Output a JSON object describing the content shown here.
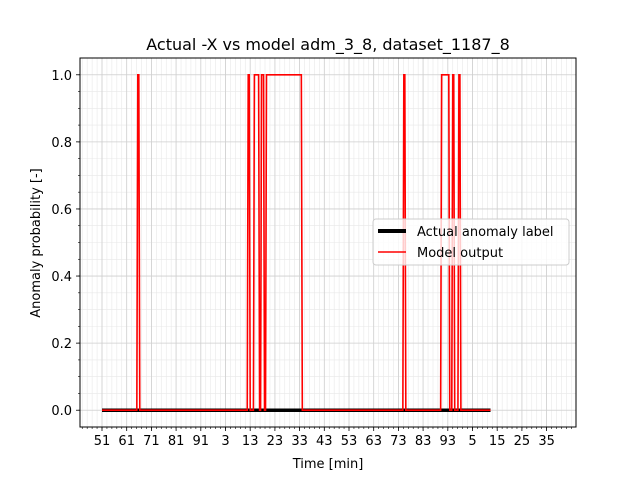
{
  "chart_data": {
    "type": "line",
    "title": "Actual -X vs model adm_3_8, dataset_1187_8",
    "xlabel": "Time [min]",
    "ylabel": "Anomaly probability [-]",
    "x_ticks": [
      "51",
      "61",
      "71",
      "81",
      "91",
      "3",
      "13",
      "23",
      "33",
      "43",
      "53",
      "63",
      "73",
      "83",
      "93",
      "5",
      "15",
      "25",
      "35"
    ],
    "y_ticks": [
      "0.0",
      "0.2",
      "0.4",
      "0.6",
      "0.8",
      "1.0"
    ],
    "ylim": [
      -0.05,
      1.05
    ],
    "grid": true,
    "legend_position": "center-right",
    "series": [
      {
        "name": "Actual anomaly label",
        "color": "#000000",
        "x": [
          0,
          157.3
        ],
        "y": [
          0,
          0
        ]
      },
      {
        "name": "Model output",
        "color": "#ff0000",
        "x": [
          0,
          14.1,
          14.5,
          14.9,
          15.3,
          58.8,
          59.2,
          59.6,
          60.0,
          61.3,
          61.7,
          63.4,
          63.8,
          64.2,
          64.6,
          65.4,
          65.8,
          66.2,
          66.6,
          77.4,
          77.8,
          79.9,
          80.3,
          80.7,
          81.1,
          121.8,
          122.2,
          122.6,
          123.0,
          137.1,
          137.5,
          139.6,
          140.0,
          140.4,
          140.8,
          141.6,
          142.0,
          142.4,
          142.8,
          144.1,
          144.5,
          144.9,
          145.3,
          157.3
        ],
        "y": [
          0,
          0,
          1,
          1,
          0,
          0,
          1,
          1,
          0,
          0,
          1,
          1,
          0,
          0,
          1,
          1,
          0,
          0,
          1,
          1,
          1,
          1,
          1,
          1,
          0,
          0,
          1,
          1,
          0,
          0,
          1,
          1,
          1,
          1,
          0,
          0,
          1,
          1,
          0,
          0,
          1,
          1,
          0,
          0
        ]
      }
    ]
  }
}
